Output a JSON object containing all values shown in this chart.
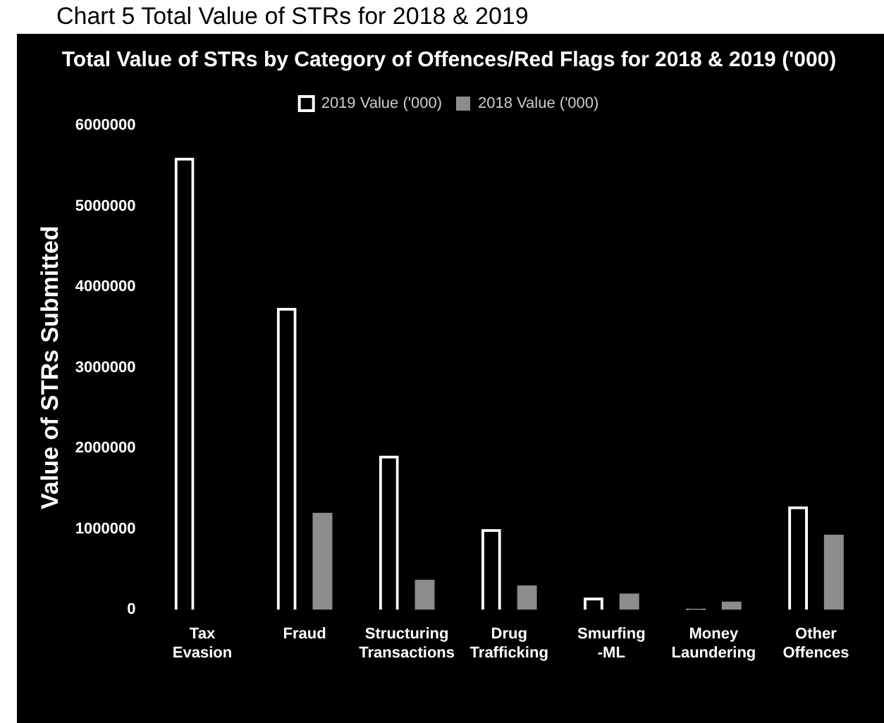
{
  "chart_data": {
    "type": "bar",
    "title": "Total Value of STRs by Category of Offences/Red Flags for 2018 & 2019 ('000)",
    "ylabel": "Value of STRs Submitted",
    "annotations": [
      "Chart 5 Total Value of STRs for 2018 & 2019"
    ],
    "categories": [
      "Tax Evasion",
      "Fraud",
      "Structuring Transactions",
      "Drug Trafficking",
      "Smurfing -ML",
      "Money Laundering",
      "Other Offences"
    ],
    "series": [
      {
        "name": "2019 Value ('000)",
        "color": "#ffffff",
        "values": [
          5600000,
          3740000,
          1910000,
          1000000,
          150000,
          10000,
          1280000
        ]
      },
      {
        "name": "2018 Value ('000)",
        "color": "#8c8c8c",
        "values": [
          null,
          1200000,
          370000,
          300000,
          200000,
          100000,
          930000
        ]
      }
    ],
    "ylim": [
      0,
      6000000
    ],
    "yticks": [
      0,
      1000000,
      2000000,
      3000000,
      4000000,
      5000000,
      6000000
    ],
    "grid": false,
    "legend": "top"
  }
}
